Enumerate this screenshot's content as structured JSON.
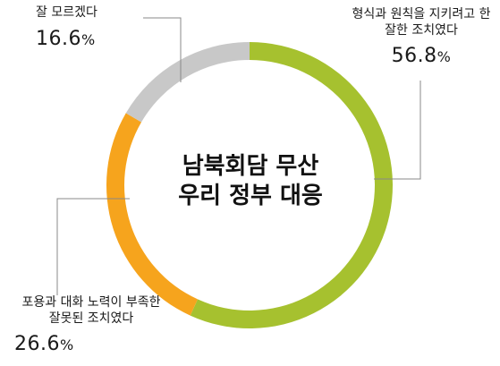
{
  "chart_data": {
    "type": "pie",
    "variant": "donut",
    "title_lines": [
      "남북회담 무산",
      "우리 정부 대응"
    ],
    "slices": [
      {
        "label_lines": [
          "형식과 원칙을 지키려고 한",
          "잘한 조치였다"
        ],
        "value": 56.8,
        "value_text": "56.8",
        "color": "#a6c12f"
      },
      {
        "label_lines": [
          "포용과 대화 노력이 부족한",
          "잘못된 조치였다"
        ],
        "value": 26.6,
        "value_text": "26.6",
        "color": "#f6a41d"
      },
      {
        "label_lines": [
          "잘 모르겠다"
        ],
        "value": 16.6,
        "value_text": "16.6",
        "color": "#c8c8c8"
      }
    ],
    "unit": "%",
    "leader_color": "#888888"
  }
}
